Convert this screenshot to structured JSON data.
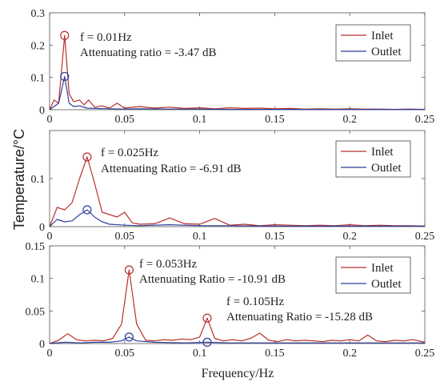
{
  "figure": {
    "ylabel": "Temperature/°C",
    "xlabel": "Frequency/Hz"
  },
  "colors": {
    "inlet": "#b8302c",
    "outlet": "#2e3f9a",
    "axis": "#555555"
  },
  "chart_data": [
    {
      "type": "line",
      "xlim": [
        0,
        0.25
      ],
      "ylim": [
        0,
        0.3
      ],
      "x_ticks": [
        "0",
        "0.05",
        "0.1",
        "0.15",
        "0.2",
        "0.25"
      ],
      "y_ticks": [
        "0",
        "0.1",
        "0.2",
        "0.3"
      ],
      "legend": [
        "Inlet",
        "Outlet"
      ],
      "legend_position": "top-right",
      "annotations": [
        "f = 0.01Hz",
        "Attenuating ratio = -3.47 dB"
      ],
      "markers": [
        {
          "series": "Inlet",
          "x": 0.01,
          "y": 0.23
        },
        {
          "series": "Outlet",
          "x": 0.01,
          "y": 0.103
        }
      ],
      "series": [
        {
          "name": "Inlet",
          "x": [
            0.0,
            0.003,
            0.006,
            0.01,
            0.013,
            0.016,
            0.02,
            0.023,
            0.026,
            0.03,
            0.035,
            0.04,
            0.045,
            0.05,
            0.06,
            0.07,
            0.08,
            0.09,
            0.1,
            0.11,
            0.12,
            0.13,
            0.14,
            0.15,
            0.16,
            0.17,
            0.18,
            0.19,
            0.2,
            0.21,
            0.22,
            0.23,
            0.24,
            0.25
          ],
          "y": [
            0.0,
            0.03,
            0.02,
            0.23,
            0.05,
            0.025,
            0.03,
            0.015,
            0.03,
            0.008,
            0.012,
            0.005,
            0.02,
            0.005,
            0.01,
            0.005,
            0.008,
            0.004,
            0.006,
            0.003,
            0.006,
            0.004,
            0.005,
            0.003,
            0.004,
            0.002,
            0.003,
            0.002,
            0.003,
            0.002,
            0.002,
            0.001,
            0.002,
            0.001
          ]
        },
        {
          "name": "Outlet",
          "x": [
            0.0,
            0.003,
            0.006,
            0.01,
            0.013,
            0.016,
            0.02,
            0.025,
            0.03,
            0.04,
            0.05,
            0.06,
            0.08,
            0.1,
            0.12,
            0.15,
            0.2,
            0.25
          ],
          "y": [
            0.0,
            0.01,
            0.02,
            0.103,
            0.02,
            0.01,
            0.012,
            0.005,
            0.004,
            0.003,
            0.002,
            0.003,
            0.002,
            0.002,
            0.001,
            0.001,
            0.001,
            0.001
          ]
        }
      ]
    },
    {
      "type": "line",
      "xlim": [
        0,
        0.25
      ],
      "ylim": [
        0,
        0.2
      ],
      "x_ticks": [
        "0",
        "0.05",
        "0.1",
        "0.15",
        "0.2",
        "0.25"
      ],
      "y_ticks": [
        "0",
        "0.1"
      ],
      "legend": [
        "Inlet",
        "Outlet"
      ],
      "legend_position": "top-right",
      "annotations": [
        "f = 0.025Hz",
        "Attenuating Ratio = -6.91 dB"
      ],
      "markers": [
        {
          "series": "Inlet",
          "x": 0.025,
          "y": 0.145
        },
        {
          "series": "Outlet",
          "x": 0.025,
          "y": 0.035
        }
      ],
      "series": [
        {
          "name": "Inlet",
          "x": [
            0.0,
            0.005,
            0.01,
            0.015,
            0.02,
            0.025,
            0.03,
            0.035,
            0.04,
            0.045,
            0.05,
            0.055,
            0.06,
            0.07,
            0.08,
            0.09,
            0.1,
            0.11,
            0.12,
            0.13,
            0.14,
            0.15,
            0.16,
            0.17,
            0.18,
            0.19,
            0.2,
            0.21,
            0.22,
            0.23,
            0.24,
            0.25
          ],
          "y": [
            0.0,
            0.04,
            0.035,
            0.05,
            0.1,
            0.145,
            0.09,
            0.03,
            0.025,
            0.02,
            0.03,
            0.008,
            0.005,
            0.006,
            0.018,
            0.006,
            0.005,
            0.017,
            0.003,
            0.005,
            0.002,
            0.004,
            0.003,
            0.002,
            0.003,
            0.002,
            0.004,
            0.002,
            0.003,
            0.002,
            0.002,
            0.001
          ]
        },
        {
          "name": "Outlet",
          "x": [
            0.0,
            0.005,
            0.01,
            0.015,
            0.02,
            0.025,
            0.03,
            0.035,
            0.04,
            0.05,
            0.06,
            0.08,
            0.1,
            0.12,
            0.15,
            0.2,
            0.25
          ],
          "y": [
            0.0,
            0.015,
            0.01,
            0.012,
            0.025,
            0.035,
            0.02,
            0.01,
            0.005,
            0.003,
            0.002,
            0.004,
            0.002,
            0.002,
            0.001,
            0.001,
            0.001
          ]
        }
      ]
    },
    {
      "type": "line",
      "xlim": [
        0,
        0.25
      ],
      "ylim": [
        0,
        0.15
      ],
      "x_ticks": [
        "0",
        "0.05",
        "0.1",
        "0.15",
        "0.2",
        "0.25"
      ],
      "y_ticks": [
        "0",
        "0.05",
        "0.1",
        "0.15"
      ],
      "legend": [
        "Inlet",
        "Outlet"
      ],
      "legend_position": "top-right",
      "annotations": [
        "f = 0.053Hz",
        "Attenuating Ratio = -10.91 dB",
        "f = 0.105Hz",
        "Attenuating Ratio = -15.28 dB"
      ],
      "markers": [
        {
          "series": "Inlet",
          "x": 0.053,
          "y": 0.113
        },
        {
          "series": "Outlet",
          "x": 0.053,
          "y": 0.01
        },
        {
          "series": "Inlet",
          "x": 0.105,
          "y": 0.039
        },
        {
          "series": "Outlet",
          "x": 0.105,
          "y": 0.002
        }
      ],
      "series": [
        {
          "name": "Inlet",
          "x": [
            0.0,
            0.006,
            0.012,
            0.018,
            0.024,
            0.03,
            0.036,
            0.042,
            0.048,
            0.053,
            0.058,
            0.064,
            0.07,
            0.076,
            0.082,
            0.088,
            0.094,
            0.1,
            0.105,
            0.11,
            0.116,
            0.122,
            0.128,
            0.134,
            0.14,
            0.146,
            0.152,
            0.158,
            0.164,
            0.17,
            0.176,
            0.182,
            0.188,
            0.194,
            0.2,
            0.206,
            0.212,
            0.218,
            0.224,
            0.23,
            0.236,
            0.242,
            0.25
          ],
          "y": [
            0.0,
            0.005,
            0.015,
            0.006,
            0.004,
            0.005,
            0.004,
            0.008,
            0.03,
            0.113,
            0.03,
            0.005,
            0.004,
            0.006,
            0.005,
            0.007,
            0.006,
            0.01,
            0.039,
            0.008,
            0.004,
            0.006,
            0.004,
            0.008,
            0.016,
            0.005,
            0.003,
            0.006,
            0.004,
            0.005,
            0.004,
            0.003,
            0.005,
            0.004,
            0.006,
            0.004,
            0.013,
            0.004,
            0.003,
            0.005,
            0.004,
            0.006,
            0.002
          ]
        },
        {
          "name": "Outlet",
          "x": [
            0.0,
            0.01,
            0.02,
            0.03,
            0.04,
            0.048,
            0.053,
            0.058,
            0.07,
            0.09,
            0.105,
            0.12,
            0.15,
            0.2,
            0.25
          ],
          "y": [
            0.0,
            0.002,
            0.001,
            0.002,
            0.002,
            0.004,
            0.01,
            0.004,
            0.002,
            0.001,
            0.002,
            0.001,
            0.001,
            0.001,
            0.001
          ]
        }
      ]
    }
  ]
}
